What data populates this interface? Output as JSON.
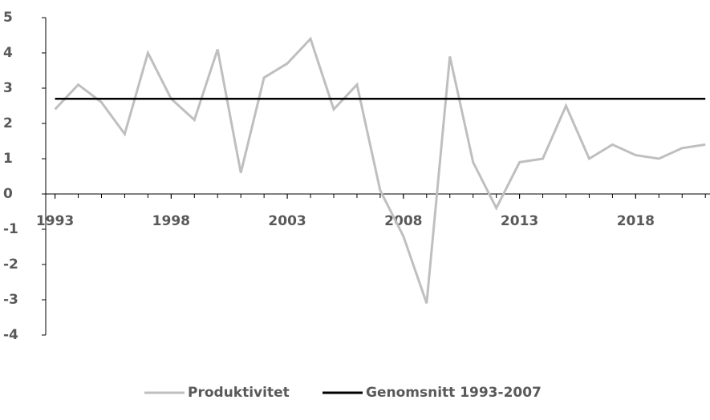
{
  "chart_data": {
    "type": "line",
    "x": [
      1993,
      1994,
      1995,
      1996,
      1997,
      1998,
      1999,
      2000,
      2001,
      2002,
      2003,
      2004,
      2005,
      2006,
      2007,
      2008,
      2009,
      2010,
      2011,
      2012,
      2013,
      2014,
      2015,
      2016,
      2017,
      2018,
      2019,
      2020,
      2021
    ],
    "series": [
      {
        "name": "Produktivitet",
        "color": "#bfbfbf",
        "values": [
          2.4,
          3.1,
          2.6,
          1.7,
          4.0,
          2.7,
          2.1,
          4.1,
          0.6,
          3.3,
          3.7,
          4.4,
          2.4,
          3.1,
          0.1,
          -1.2,
          -3.1,
          3.9,
          0.9,
          -0.4,
          0.9,
          1.0,
          2.5,
          1.0,
          1.4,
          1.1,
          1.0,
          1.3,
          1.4
        ]
      },
      {
        "name": "Genomsnitt 1993-2007",
        "color": "#000000",
        "values": [
          2.7,
          2.7,
          2.7,
          2.7,
          2.7,
          2.7,
          2.7,
          2.7,
          2.7,
          2.7,
          2.7,
          2.7,
          2.7,
          2.7,
          2.7,
          2.7,
          2.7,
          2.7,
          2.7,
          2.7,
          2.7,
          2.7,
          2.7,
          2.7,
          2.7,
          2.7,
          2.7,
          2.7,
          2.7
        ]
      }
    ],
    "xlim": [
      1992.6,
      2021.2
    ],
    "xticks": [
      1993,
      1998,
      2003,
      2008,
      2013,
      2018
    ],
    "ylim": [
      -4,
      5
    ],
    "yticks": [
      -4,
      -3,
      -2,
      -1,
      0,
      1,
      2,
      3,
      4,
      5
    ],
    "legend": "bottom"
  }
}
